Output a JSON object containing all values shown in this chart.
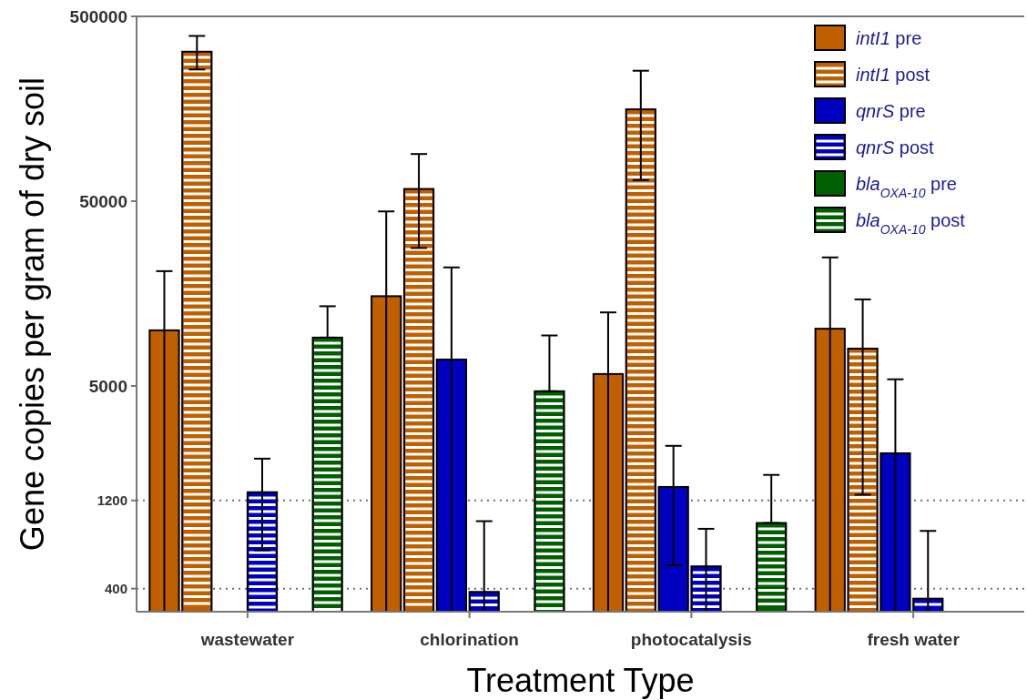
{
  "chart_data": {
    "type": "bar",
    "xlabel": "Treatment Type",
    "ylabel": "Gene copies per gram of dry soil",
    "categories": [
      "wastewater",
      "chlorination",
      "photocatalysis",
      "fresh water"
    ],
    "log": true,
    "ylim": [
      300,
      500000
    ],
    "yticks": [
      400,
      1200,
      5000,
      50000,
      500000
    ],
    "grid": false,
    "legend": "top right",
    "ref_lines": [
      {
        "axis": "y",
        "value": 1200,
        "line_style": "dotted",
        "color": "#707070"
      },
      {
        "axis": "y",
        "value": 400,
        "line_style": "dotted",
        "color": "#707070"
      }
    ],
    "series": [
      {
        "name": "intI1 pre",
        "color": "#c05f00",
        "values": [
          10000,
          15300,
          5800,
          10200
        ],
        "errors": [
          [
            300,
            20900
          ],
          [
            300,
            44000
          ],
          [
            300,
            12500
          ],
          [
            300,
            24800
          ]
        ]
      },
      {
        "name": "intI1 post",
        "color": "#c05f00",
        "values": [
          322000,
          58200,
          157000,
          7960
        ],
        "errors": [
          [
            258000,
            392000
          ],
          [
            27900,
            90000
          ],
          [
            65000,
            254000
          ],
          [
            1290,
            14700
          ]
        ]
      },
      {
        "name": "qnrS pre",
        "color": "#0000c0",
        "values": [
          null,
          6950,
          1420,
          2160
        ],
        "errors": [
          null,
          [
            300,
            21900
          ],
          [
            535,
            2370
          ],
          [
            300,
            5430
          ]
        ]
      },
      {
        "name": "qnrS post",
        "color": "#0000c0",
        "values": [
          1330,
          384,
          528,
          353
        ],
        "errors": [
          [
            645,
            2020
          ],
          [
            300,
            927
          ],
          [
            300,
            843
          ],
          [
            300,
            821
          ]
        ]
      },
      {
        "name": "bla$_{OXA-10}$ pre",
        "color": "#006000",
        "values": [
          null,
          null,
          null,
          null
        ],
        "errors": [
          null,
          null,
          null,
          null
        ]
      },
      {
        "name": "bla$_{OXA-10}$ post",
        "color": "#006000",
        "values": [
          9130,
          4680,
          906,
          null
        ],
        "errors": [
          [
            9130,
            13500
          ],
          [
            4680,
            9380
          ],
          [
            906,
            1650
          ],
          null
        ]
      }
    ]
  }
}
